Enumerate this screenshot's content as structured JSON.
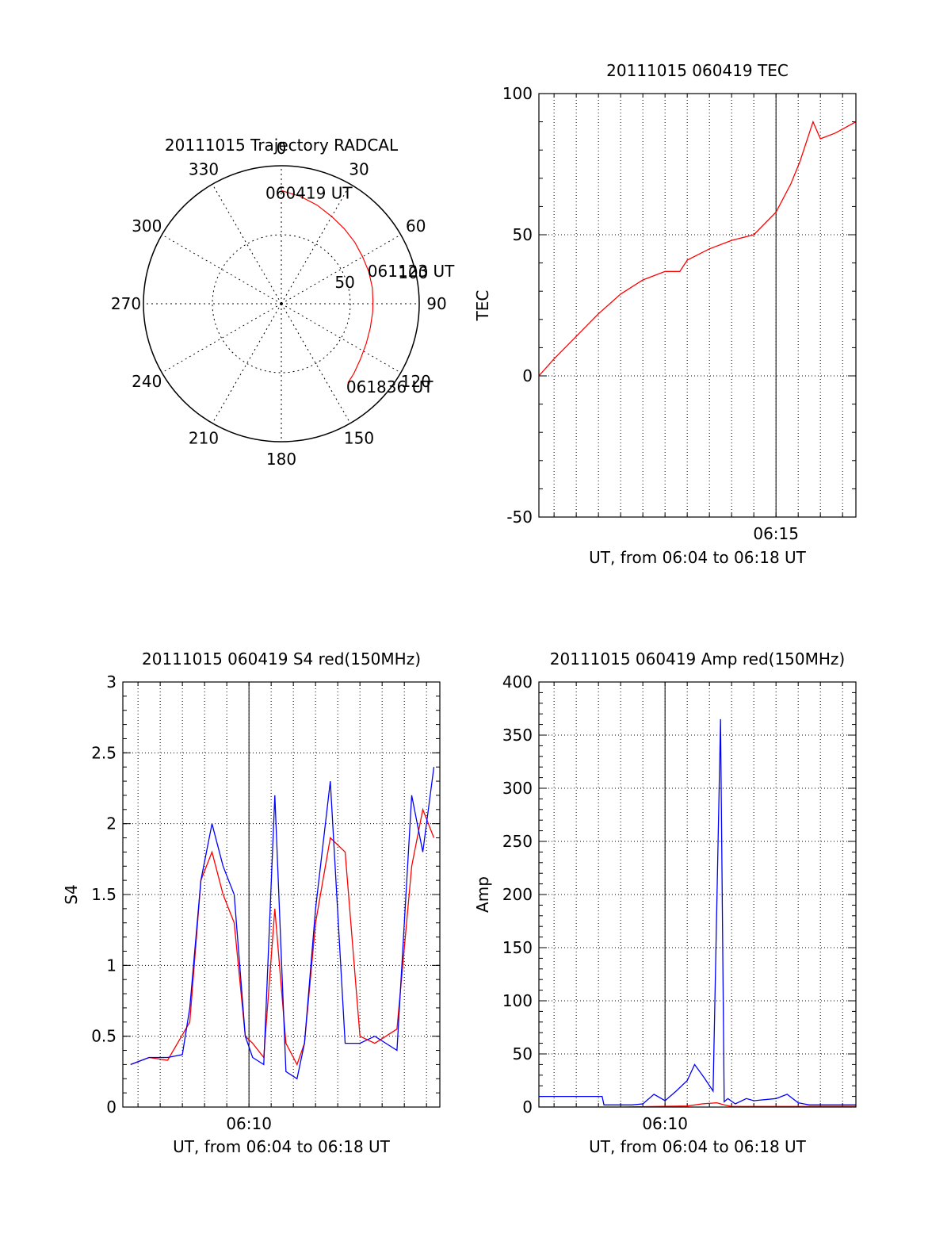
{
  "colors": {
    "red": "#ff0000",
    "blue": "#0000ff",
    "axis": "#000000",
    "grid": "#000000"
  },
  "chart_data": [
    {
      "type": "polar",
      "title": "20111015 Trajectory RADCAL",
      "angle_labels": [
        "0",
        "30",
        "60",
        "90",
        "120",
        "150",
        "180",
        "210",
        "240",
        "270",
        "300",
        "330"
      ],
      "radial_ticks": [
        "50",
        "100"
      ],
      "radial_range": [
        0,
        100
      ],
      "grid": true,
      "series": [
        {
          "color": "#ff0000",
          "points": [
            [
              0,
              82
            ],
            [
              10,
              79
            ],
            [
              20,
              76
            ],
            [
              30,
              73
            ],
            [
              40,
              71
            ],
            [
              50,
              69.5
            ],
            [
              60,
              68
            ],
            [
              70,
              67.5
            ],
            [
              80,
              67
            ],
            [
              88,
              66.5
            ],
            [
              95,
              66.5
            ],
            [
              105,
              66.8
            ],
            [
              115,
              68
            ],
            [
              125,
              70
            ],
            [
              134,
              73
            ],
            [
              140,
              75
            ]
          ]
        }
      ],
      "annotations": [
        {
          "text": "060419 UT",
          "at": [
            0,
            82
          ]
        },
        {
          "text": "061123 UT",
          "at": [
            80,
            67
          ]
        },
        {
          "text": "061836 UT",
          "at": [
            140,
            75
          ]
        }
      ]
    },
    {
      "type": "line",
      "title": "20111015 060419 TEC",
      "xlabel": "UT, from 06:04 to 06:18 UT",
      "ylabel": "TEC",
      "xlim": [
        "06:04:19",
        "06:18:36"
      ],
      "ylim": [
        -50,
        100
      ],
      "yticks": [
        "-50",
        "0",
        "50",
        "100"
      ],
      "xticks": [
        "06:15"
      ],
      "grid": true,
      "series": [
        {
          "color": "#ff0000",
          "x": [
            "06:04:19",
            "06:05:00",
            "06:06:00",
            "06:07:00",
            "06:08:00",
            "06:09:00",
            "06:10:00",
            "06:10:40",
            "06:11:00",
            "06:12:00",
            "06:13:00",
            "06:14:00",
            "06:15:00",
            "06:15:40",
            "06:16:05",
            "06:16:40",
            "06:17:00",
            "06:17:40",
            "06:18:36"
          ],
          "y": [
            0,
            6,
            14,
            22,
            29,
            34,
            37,
            37,
            41,
            45,
            48,
            50,
            58,
            68,
            76,
            90,
            84,
            86,
            90
          ]
        }
      ]
    },
    {
      "type": "line",
      "title": "20111015 060419 S4 red(150MHz)",
      "xlabel": "UT, from 06:04 to 06:18 UT",
      "ylabel": "S4",
      "xlim": [
        "06:04:19",
        "06:18:36"
      ],
      "ylim": [
        0,
        3
      ],
      "yticks": [
        "0",
        "0.5",
        "1",
        "1.5",
        "2",
        "2.5",
        "3"
      ],
      "xticks": [
        "06:10"
      ],
      "grid": true,
      "series": [
        {
          "color": "#ff0000",
          "x": [
            "06:04:40",
            "06:05:30",
            "06:06:20",
            "06:07:20",
            "06:07:50",
            "06:08:20",
            "06:08:50",
            "06:09:20",
            "06:09:50",
            "06:10:10",
            "06:10:40",
            "06:11:10",
            "06:11:40",
            "06:12:10",
            "06:12:30",
            "06:13:00",
            "06:13:40",
            "06:14:20",
            "06:15:00",
            "06:15:40",
            "06:16:40",
            "06:17:20",
            "06:17:50",
            "06:18:20"
          ],
          "y": [
            0.3,
            0.35,
            0.33,
            0.6,
            1.6,
            1.8,
            1.5,
            1.3,
            0.5,
            0.45,
            0.35,
            1.4,
            0.45,
            0.3,
            0.45,
            1.3,
            1.9,
            1.8,
            0.5,
            0.45,
            0.55,
            1.7,
            2.1,
            1.9
          ]
        },
        {
          "color": "#0000ff",
          "x": [
            "06:04:40",
            "06:05:30",
            "06:06:20",
            "06:07:00",
            "06:07:20",
            "06:07:50",
            "06:08:20",
            "06:08:50",
            "06:09:20",
            "06:09:50",
            "06:10:10",
            "06:10:40",
            "06:11:10",
            "06:11:40",
            "06:12:10",
            "06:12:30",
            "06:13:00",
            "06:13:40",
            "06:14:20",
            "06:15:00",
            "06:15:40",
            "06:16:40",
            "06:17:20",
            "06:17:50",
            "06:18:20"
          ],
          "y": [
            0.3,
            0.35,
            0.35,
            0.37,
            0.7,
            1.6,
            2.0,
            1.7,
            1.5,
            0.5,
            0.35,
            0.3,
            2.2,
            0.25,
            0.2,
            0.45,
            1.4,
            2.3,
            0.45,
            0.45,
            0.5,
            0.4,
            2.2,
            1.8,
            2.4
          ]
        }
      ]
    },
    {
      "type": "line",
      "title": "20111015 060419 Amp red(150MHz)",
      "xlabel": "UT, from 06:04 to 06:18 UT",
      "ylabel": "Amp",
      "xlim": [
        "06:04:19",
        "06:18:36"
      ],
      "ylim": [
        0,
        400
      ],
      "yticks": [
        "0",
        "50",
        "100",
        "150",
        "200",
        "250",
        "300",
        "350",
        "400"
      ],
      "xticks": [
        "06:10"
      ],
      "grid": true,
      "series": [
        {
          "color": "#0000ff",
          "x": [
            "06:04:20",
            "06:05:30",
            "06:07:10",
            "06:07:15",
            "06:08:30",
            "06:09:00",
            "06:09:30",
            "06:10:00",
            "06:10:30",
            "06:11:00",
            "06:11:20",
            "06:11:45",
            "06:12:10",
            "06:12:30",
            "06:12:40",
            "06:12:50",
            "06:13:10",
            "06:13:40",
            "06:14:00",
            "06:15:00",
            "06:15:30",
            "06:16:00",
            "06:16:30",
            "06:18:36"
          ],
          "y": [
            10,
            10,
            10,
            2,
            2,
            3,
            12,
            6,
            15,
            25,
            40,
            28,
            15,
            365,
            5,
            8,
            3,
            8,
            6,
            8,
            12,
            4,
            2,
            2
          ]
        },
        {
          "color": "#ff0000",
          "x": [
            "06:04:20",
            "06:08:00",
            "06:11:00",
            "06:11:40",
            "06:12:20",
            "06:12:40",
            "06:13:00",
            "06:18:36"
          ],
          "y": [
            0,
            0,
            1,
            3,
            4,
            2,
            0.5,
            0.5
          ]
        }
      ]
    }
  ]
}
